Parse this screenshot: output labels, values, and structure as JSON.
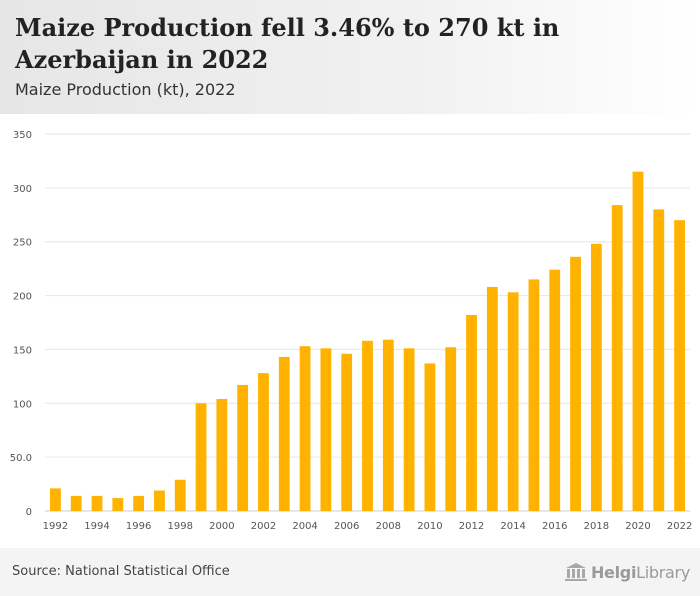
{
  "header": {
    "title": "Maize Production fell 3.46% to 270 kt in Azerbaijan in 2022",
    "subtitle": "Maize Production (kt), 2022"
  },
  "footer": {
    "source": "Source: National Statistical Office",
    "logo_text_bold": "Helgi",
    "logo_text_light": "Library"
  },
  "colors": {
    "bar": "#FFB300",
    "grid": "#e6e6e6",
    "axis_text": "#555555"
  },
  "chart_data": {
    "type": "bar",
    "title": "Maize Production (kt), 2022",
    "xlabel": "",
    "ylabel": "",
    "ylim": [
      0,
      350
    ],
    "yticks": [
      0,
      50,
      100,
      150,
      200,
      250,
      300,
      350
    ],
    "ytick_labels": [
      "0",
      "50.0",
      "100",
      "150",
      "200",
      "250",
      "300",
      "350"
    ],
    "grid": true,
    "categories": [
      "1992",
      "1993",
      "1994",
      "1995",
      "1996",
      "1997",
      "1998",
      "1999",
      "2000",
      "2001",
      "2002",
      "2003",
      "2004",
      "2005",
      "2006",
      "2007",
      "2008",
      "2009",
      "2010",
      "2011",
      "2012",
      "2013",
      "2014",
      "2015",
      "2016",
      "2017",
      "2018",
      "2019",
      "2020",
      "2021",
      "2022"
    ],
    "xtick_labels": [
      "1992",
      "1994",
      "1996",
      "1998",
      "2000",
      "2002",
      "2004",
      "2006",
      "2008",
      "2010",
      "2012",
      "2014",
      "2016",
      "2018",
      "2020",
      "2022"
    ],
    "values": [
      21,
      14,
      14,
      12,
      14,
      19,
      29,
      100,
      104,
      117,
      128,
      143,
      153,
      151,
      146,
      158,
      159,
      151,
      137,
      152,
      182,
      208,
      203,
      215,
      224,
      236,
      248,
      284,
      315,
      280,
      270
    ]
  }
}
